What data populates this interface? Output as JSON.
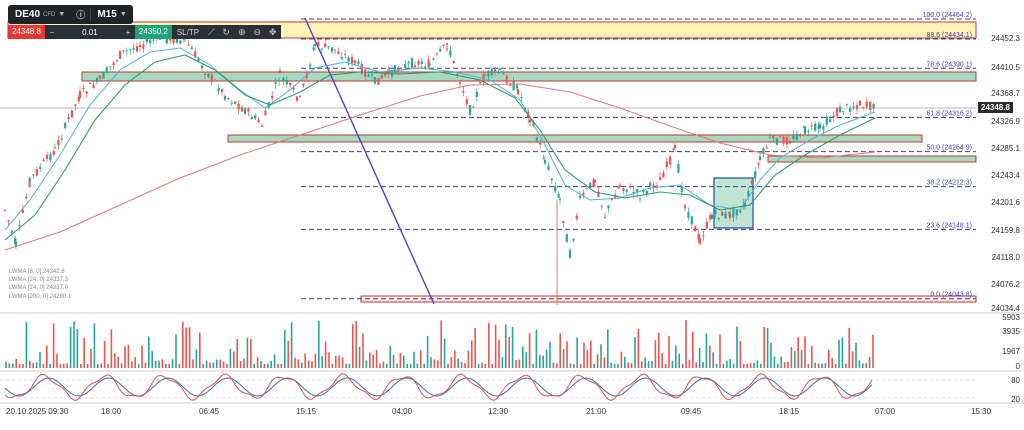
{
  "toolbar": {
    "symbol": "DE40",
    "symbol_type": "CFD",
    "timeframe": "M15",
    "info_icon": "info-icon",
    "chevron_icon": "chevron-down-icon"
  },
  "trade_panel": {
    "sell_price": "24348.8",
    "minus": "−",
    "quantity": "0.01",
    "plus": "+",
    "buy_price": "24350.2",
    "sltp_label": "SL/TP",
    "tools": [
      "line-icon",
      "replay-icon",
      "zoom-in-icon",
      "zoom-out-icon",
      "crosshair-icon"
    ]
  },
  "indicator_legend": [
    "LWMA [8, 0] 24342.6",
    "LWMA [24, 0] 24337.3",
    "LWMA [24, 0] 24337.0",
    "LWMA [200, 0] 24280.1"
  ],
  "price_axis": {
    "labels": [
      "24452.3",
      "24410.5",
      "24368.7",
      "24326.9",
      "24285.1",
      "24243.4",
      "24201.6",
      "24159.8",
      "24118.0",
      "24076.2",
      "24034.4"
    ],
    "current_price": "24348.8"
  },
  "fib_levels": [
    {
      "label": "100.0 (24464.2)",
      "price": 24464.2
    },
    {
      "label": "88.6 (24434.1)",
      "price": 24434.1
    },
    {
      "label": "78.6 (24390.1)",
      "price": 24390.1
    },
    {
      "label": "61.8 (24316.2)",
      "price": 24316.2
    },
    {
      "label": "50.0 (24264.9)",
      "price": 24264.9
    },
    {
      "label": "38.2 (24212.3)",
      "price": 24212.3
    },
    {
      "label": "23.6 (24148.1)",
      "price": 24148.1
    },
    {
      "label": "0.0 (24043.8)",
      "price": 24043.8
    }
  ],
  "volume_axis": {
    "labels": [
      "5903",
      "3935",
      "1967",
      "0"
    ]
  },
  "oscillator_axis": {
    "labels": [
      "80",
      "20"
    ]
  },
  "time_axis": {
    "labels": [
      "20.10.2025 09:30",
      "18:00",
      "06:45",
      "15:15",
      "04:00",
      "12:30",
      "21:00",
      "09:45",
      "18:15",
      "07:00",
      "15:30"
    ]
  },
  "colors": {
    "up": "#26a69a",
    "down": "#ef5350",
    "fib": "#3f3fb0",
    "zone_yellow": "#fff4b8",
    "zone_green": "#a8d8c0",
    "lwma_fast": "#4fb3d9",
    "lwma_slow": "#2e9e6b",
    "lwma_200": "#e07a7a",
    "trendline": "#5a3fc4"
  }
}
